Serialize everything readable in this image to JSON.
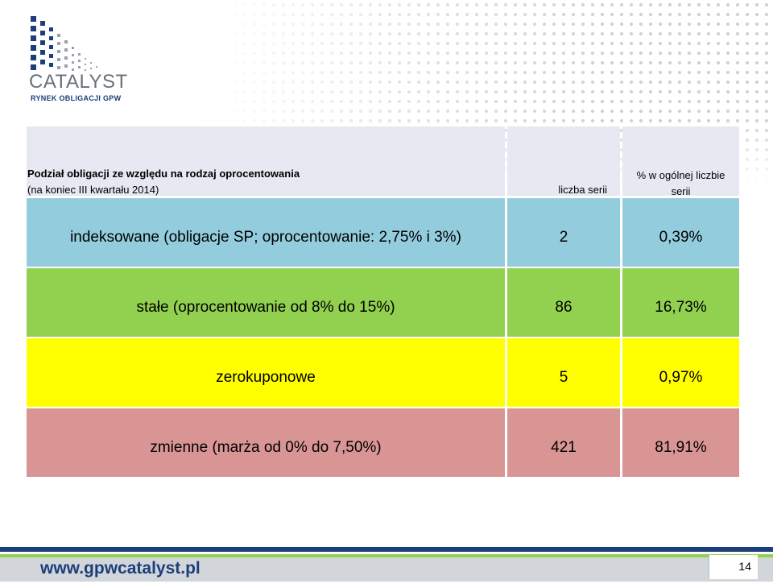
{
  "logo": {
    "name": "CATALYST",
    "tagline": "RYNEK OBLIGACJI GPW",
    "brand_color": "#1c3f7a",
    "text_color": "#6b7178"
  },
  "table": {
    "title": "Podział obligacji ze względu na rodzaj oprocentowania",
    "subtitle": "(na koniec III kwartału 2014)",
    "col2_header": "liczba serii",
    "col3_header_line1": "% w ogólnej liczbie",
    "col3_header_line2": "serii",
    "rows": [
      {
        "label": "indeksowane (obligacje SP; oprocentowanie: 2,75% i 3%)",
        "count": "2",
        "percent": "0,39%",
        "color": "#93cddd"
      },
      {
        "label": "stałe (oprocentowanie od 8% do 15%)",
        "count": "86",
        "percent": "16,73%",
        "color": "#92d050"
      },
      {
        "label": "zerokuponowe",
        "count": "5",
        "percent": "0,97%",
        "color": "#ffff00"
      },
      {
        "label": "zmienne (marża od 0% do 7,50%)",
        "count": "421",
        "percent": "81,91%",
        "color": "#d99594"
      }
    ]
  },
  "footer": {
    "url": "www.gpwcatalyst.pl",
    "page_number": "14"
  }
}
